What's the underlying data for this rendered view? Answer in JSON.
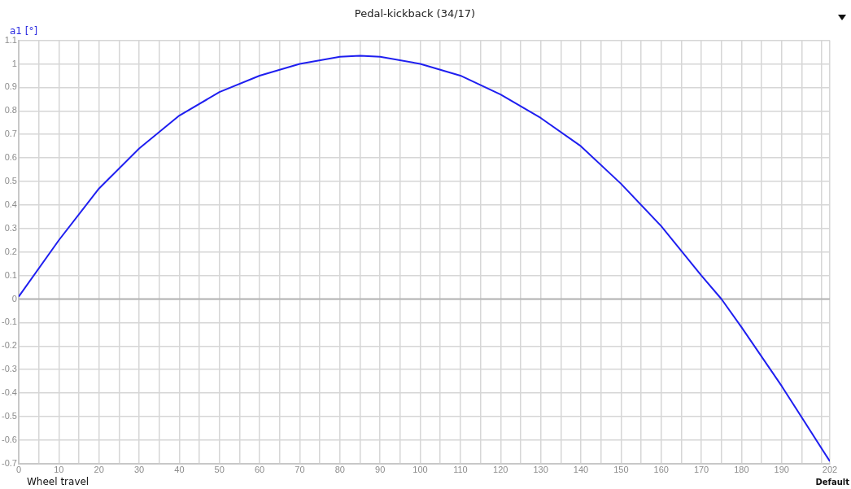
{
  "chart_data": {
    "type": "line",
    "title": "Pedal-kickback (34/17)",
    "xlabel": "Wheel travel",
    "ylabel": "a1 [°]",
    "annotations": [
      "Default"
    ],
    "x": [
      0,
      10,
      20,
      30,
      40,
      50,
      60,
      70,
      80,
      85,
      90,
      100,
      110,
      120,
      130,
      140,
      150,
      160,
      170,
      175,
      180,
      190,
      202
    ],
    "series": [
      {
        "color": "#1f1ff0",
        "values": [
          0.01,
          0.25,
          0.47,
          0.64,
          0.78,
          0.88,
          0.95,
          1.0,
          1.03,
          1.035,
          1.03,
          1.0,
          0.95,
          0.87,
          0.77,
          0.65,
          0.49,
          0.31,
          0.1,
          0,
          -0.12,
          -0.37,
          -0.69
        ]
      }
    ],
    "xlim": [
      0,
      202
    ],
    "xticks": [
      0,
      {
        "value": 5,
        "label": null
      },
      10,
      {
        "value": 15,
        "label": null
      },
      20,
      {
        "value": 25,
        "label": null
      },
      30,
      {
        "value": 35,
        "label": null
      },
      40,
      {
        "value": 45,
        "label": null
      },
      50,
      {
        "value": 55,
        "label": null
      },
      60,
      {
        "value": 65,
        "label": null
      },
      70,
      {
        "value": 75,
        "label": null
      },
      80,
      {
        "value": 85,
        "label": null
      },
      90,
      {
        "value": 95,
        "label": null
      },
      100,
      {
        "value": 105,
        "label": null
      },
      110,
      {
        "value": 115,
        "label": null
      },
      120,
      {
        "value": 125,
        "label": null
      },
      130,
      {
        "value": 135,
        "label": null
      },
      140,
      {
        "value": 145,
        "label": null
      },
      150,
      {
        "value": 155,
        "label": null
      },
      160,
      {
        "value": 165,
        "label": null
      },
      170,
      {
        "value": 175,
        "label": null
      },
      180,
      {
        "value": 185,
        "label": null
      },
      190,
      {
        "value": 195,
        "label": null
      },
      {
        "value": 200,
        "label": null
      },
      202
    ],
    "ylim": [
      -0.7,
      1.1
    ],
    "yticks": [
      -0.7,
      -0.6,
      -0.5,
      -0.4,
      -0.3,
      -0.2,
      -0.1,
      0,
      0.1,
      0.2,
      0.3,
      0.4,
      0.5,
      0.6,
      0.7,
      0.8,
      0.9,
      1,
      1.1
    ],
    "ref_lines": [
      {
        "axis": "y",
        "value": 0,
        "color": "#b4b4b4"
      }
    ],
    "grid": true,
    "legend": false,
    "marker": "none",
    "line_style": "solid"
  }
}
